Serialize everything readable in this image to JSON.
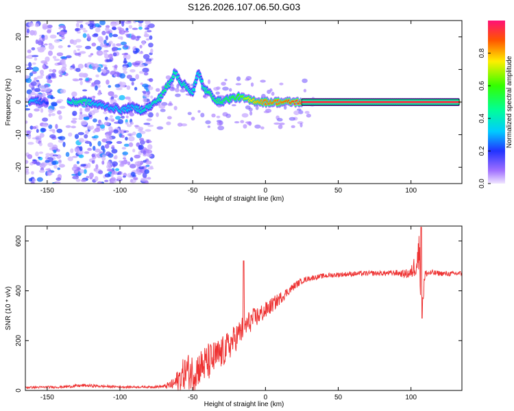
{
  "title": "S126.2026.107.06.50.G03",
  "chart_data": [
    {
      "type": "heatmap",
      "name": "spectrogram",
      "xlabel": "Height of straight line (km)",
      "ylabel": "Frequency (Hz)",
      "xlim": [
        -165,
        135
      ],
      "ylim": [
        -25,
        25
      ],
      "xticks": [
        -150,
        -100,
        -50,
        0,
        50,
        100
      ],
      "yticks": [
        -20,
        -10,
        0,
        10,
        20
      ],
      "noise_region_km": [
        -165,
        -78
      ],
      "colorbar": {
        "label": "Normalized spectral amplitude",
        "range": [
          0,
          1
        ],
        "ticks": [
          0.0,
          0.2,
          0.4,
          0.6,
          0.8
        ],
        "tick_labels": [
          "0.0",
          "0.2",
          "0.4",
          "0.6",
          "0.8"
        ]
      },
      "ridge": [
        {
          "x": -162,
          "f": 0.5,
          "a": 0.35
        },
        {
          "x": -150,
          "f": 0.0,
          "a": 0.2
        },
        {
          "x": -130,
          "f": 0.0,
          "a": 0.45
        },
        {
          "x": -125,
          "f": 0.3,
          "a": 0.5
        },
        {
          "x": -118,
          "f": -0.5,
          "a": 0.35
        },
        {
          "x": -108,
          "f": -1.5,
          "a": 0.3
        },
        {
          "x": -98,
          "f": -2.5,
          "a": 0.35
        },
        {
          "x": -92,
          "f": -1.5,
          "a": 0.3
        },
        {
          "x": -85,
          "f": -2.5,
          "a": 0.4
        },
        {
          "x": -78,
          "f": -1.0,
          "a": 0.4
        },
        {
          "x": -73,
          "f": 1.0,
          "a": 0.45
        },
        {
          "x": -68,
          "f": 4.5,
          "a": 0.5
        },
        {
          "x": -65,
          "f": 6.0,
          "a": 0.45
        },
        {
          "x": -62,
          "f": 9.5,
          "a": 0.45
        },
        {
          "x": -58,
          "f": 6.0,
          "a": 0.4
        },
        {
          "x": -55,
          "f": 5.0,
          "a": 0.45
        },
        {
          "x": -50,
          "f": 3.0,
          "a": 0.4
        },
        {
          "x": -46,
          "f": 9.0,
          "a": 0.35
        },
        {
          "x": -42,
          "f": 4.0,
          "a": 0.45
        },
        {
          "x": -38,
          "f": 2.5,
          "a": 0.5
        },
        {
          "x": -32,
          "f": 0.0,
          "a": 0.5
        },
        {
          "x": -25,
          "f": 1.0,
          "a": 0.55
        },
        {
          "x": -18,
          "f": 1.5,
          "a": 0.6
        },
        {
          "x": -10,
          "f": 0.5,
          "a": 0.75
        },
        {
          "x": 0,
          "f": 0.0,
          "a": 0.85
        },
        {
          "x": 10,
          "f": 0.0,
          "a": 0.85
        },
        {
          "x": 20,
          "f": 0.0,
          "a": 0.9
        },
        {
          "x": 40,
          "f": 0.0,
          "a": 0.95
        },
        {
          "x": 60,
          "f": 0.0,
          "a": 0.95
        },
        {
          "x": 80,
          "f": 0.0,
          "a": 0.95
        },
        {
          "x": 90,
          "f": 0.0,
          "a": 0.95
        },
        {
          "x": 100,
          "f": 0.0,
          "a": 0.9
        },
        {
          "x": 110,
          "f": 0.0,
          "a": 0.95
        },
        {
          "x": 133,
          "f": 0.0,
          "a": 0.95
        }
      ]
    },
    {
      "type": "line",
      "name": "snr",
      "xlabel": "Height of straight line (km)",
      "ylabel": "SNR (10 * v/v)",
      "xlim": [
        -165,
        135
      ],
      "ylim": [
        0,
        660
      ],
      "xticks": [
        -150,
        -100,
        -50,
        0,
        50,
        100
      ],
      "yticks": [
        0,
        200,
        400,
        600
      ],
      "color": "#ee3333",
      "series": [
        {
          "name": "SNR",
          "x": [
            -165,
            -140,
            -125,
            -110,
            -95,
            -80,
            -70,
            -63,
            -58,
            -54,
            -50,
            -45,
            -40,
            -35,
            -30,
            -25,
            -20,
            -15,
            -10,
            -5,
            0,
            5,
            10,
            15,
            20,
            25,
            30,
            35,
            40,
            50,
            60,
            70,
            80,
            90,
            95,
            100,
            104,
            106,
            107,
            108,
            110,
            115,
            120,
            125,
            135
          ],
          "y": [
            12,
            14,
            20,
            16,
            14,
            14,
            16,
            25,
            55,
            80,
            70,
            95,
            110,
            130,
            150,
            180,
            215,
            250,
            280,
            300,
            320,
            345,
            370,
            395,
            420,
            440,
            450,
            455,
            460,
            465,
            468,
            470,
            470,
            472,
            468,
            470,
            520,
            560,
            420,
            380,
            470,
            472,
            470,
            468,
            470
          ],
          "noise": [
            4,
            5,
            6,
            5,
            4,
            4,
            6,
            25,
            60,
            70,
            80,
            70,
            80,
            70,
            65,
            60,
            55,
            55,
            45,
            40,
            35,
            30,
            25,
            18,
            15,
            12,
            10,
            10,
            10,
            10,
            10,
            10,
            10,
            12,
            15,
            25,
            60,
            100,
            120,
            90,
            15,
            12,
            10,
            10,
            10
          ]
        }
      ],
      "annotations": [
        {
          "x": -15,
          "y": 520,
          "text": ""
        },
        {
          "x": 107,
          "y": 655,
          "text": ""
        }
      ]
    }
  ]
}
